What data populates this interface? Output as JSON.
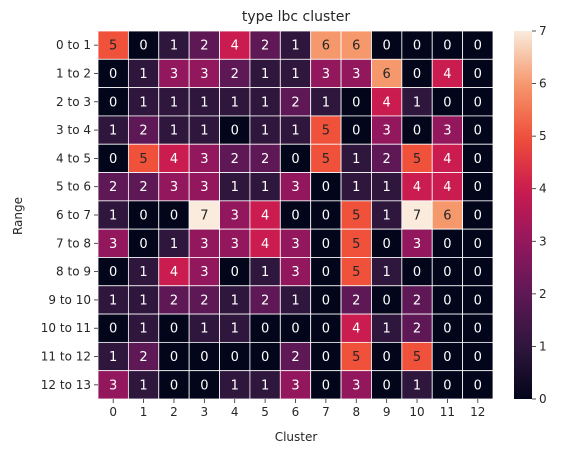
{
  "chart_data": {
    "type": "heatmap",
    "title": "type lbc cluster",
    "xlabel": "Cluster",
    "ylabel": "Range",
    "x_categories": [
      "0",
      "1",
      "2",
      "3",
      "4",
      "5",
      "6",
      "7",
      "8",
      "9",
      "10",
      "11",
      "12"
    ],
    "y_categories": [
      "0 to 1",
      "1 to 2",
      "2 to 3",
      "3 to 4",
      "4 to 5",
      "5 to 6",
      "6 to 7",
      "7 to 8",
      "8 to 9",
      "9 to 10",
      "10 to 11",
      "11 to 12",
      "12 to 13"
    ],
    "values": [
      [
        5,
        0,
        1,
        2,
        4,
        2,
        1,
        6,
        6,
        0,
        0,
        0,
        0
      ],
      [
        0,
        1,
        3,
        3,
        2,
        1,
        1,
        3,
        3,
        6,
        0,
        4,
        0
      ],
      [
        0,
        1,
        1,
        1,
        1,
        1,
        2,
        1,
        0,
        4,
        1,
        0,
        0
      ],
      [
        1,
        2,
        1,
        1,
        0,
        1,
        1,
        5,
        0,
        3,
        0,
        3,
        0
      ],
      [
        0,
        5,
        4,
        3,
        2,
        2,
        0,
        5,
        1,
        2,
        5,
        4,
        0
      ],
      [
        2,
        2,
        3,
        3,
        1,
        1,
        3,
        0,
        1,
        1,
        4,
        4,
        0
      ],
      [
        1,
        0,
        0,
        7,
        3,
        4,
        0,
        0,
        5,
        1,
        7,
        6,
        0
      ],
      [
        3,
        0,
        1,
        3,
        3,
        4,
        3,
        0,
        5,
        0,
        3,
        0,
        0
      ],
      [
        0,
        1,
        4,
        3,
        0,
        1,
        3,
        0,
        5,
        1,
        0,
        0,
        0
      ],
      [
        1,
        1,
        2,
        2,
        1,
        2,
        1,
        0,
        2,
        0,
        2,
        0,
        0
      ],
      [
        0,
        1,
        0,
        1,
        1,
        0,
        0,
        0,
        4,
        1,
        2,
        0,
        0
      ],
      [
        1,
        2,
        0,
        0,
        0,
        0,
        2,
        0,
        5,
        0,
        5,
        0,
        0
      ],
      [
        3,
        1,
        0,
        0,
        1,
        1,
        3,
        0,
        3,
        0,
        1,
        0,
        0
      ]
    ],
    "vmin": 0,
    "vmax": 7,
    "colorbar_ticks": [
      0,
      1,
      2,
      3,
      4,
      5,
      6,
      7
    ],
    "colormap": "rocket",
    "cell_label_colors": {
      "dark_cells": "#ffffff",
      "light_cells": "#262626"
    },
    "grid": false
  }
}
